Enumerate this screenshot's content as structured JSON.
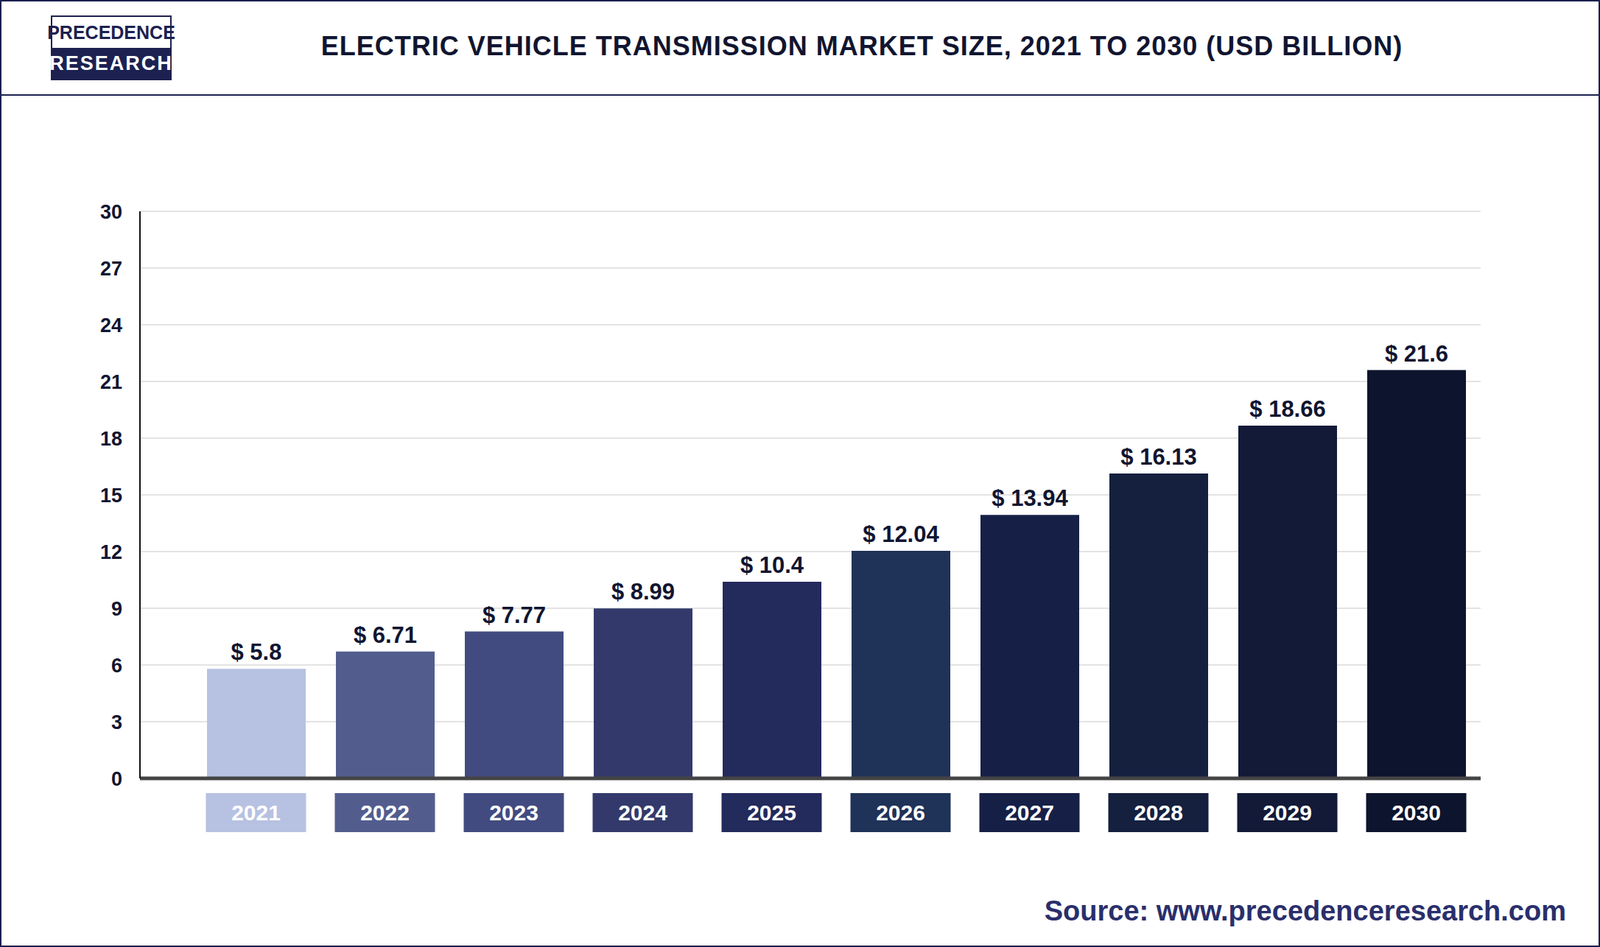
{
  "chart_data": {
    "type": "bar",
    "title": "ELECTRIC VEHICLE TRANSMISSION MARKET SIZE, 2021 TO 2030 (USD BILLION)",
    "logo": [
      "PRECEDENCE",
      "RESEARCH"
    ],
    "source": "Source: www.precedenceresearch.com",
    "categories": [
      "2021",
      "2022",
      "2023",
      "2024",
      "2025",
      "2026",
      "2027",
      "2028",
      "2029",
      "2030"
    ],
    "values": [
      5.8,
      6.71,
      7.77,
      8.99,
      10.4,
      12.04,
      13.94,
      16.13,
      18.66,
      21.6
    ],
    "value_labels": [
      "$ 5.8",
      "$ 6.71",
      "$ 7.77",
      "$ 8.99",
      "$ 10.4",
      "$ 12.04",
      "$ 13.94",
      "$ 16.13",
      "$ 18.66",
      "$ 21.6"
    ],
    "colors": [
      "#b7c1e1",
      "#525d8e",
      "#424b80",
      "#333a6b",
      "#232a5c",
      "#1f3258",
      "#162047",
      "#15203f",
      "#121a38",
      "#0d142e"
    ],
    "ylim": [
      0,
      30
    ],
    "yticks": [
      0,
      3,
      6,
      9,
      12,
      15,
      18,
      21,
      24,
      27,
      30
    ],
    "grid": true,
    "data_labels": true
  }
}
